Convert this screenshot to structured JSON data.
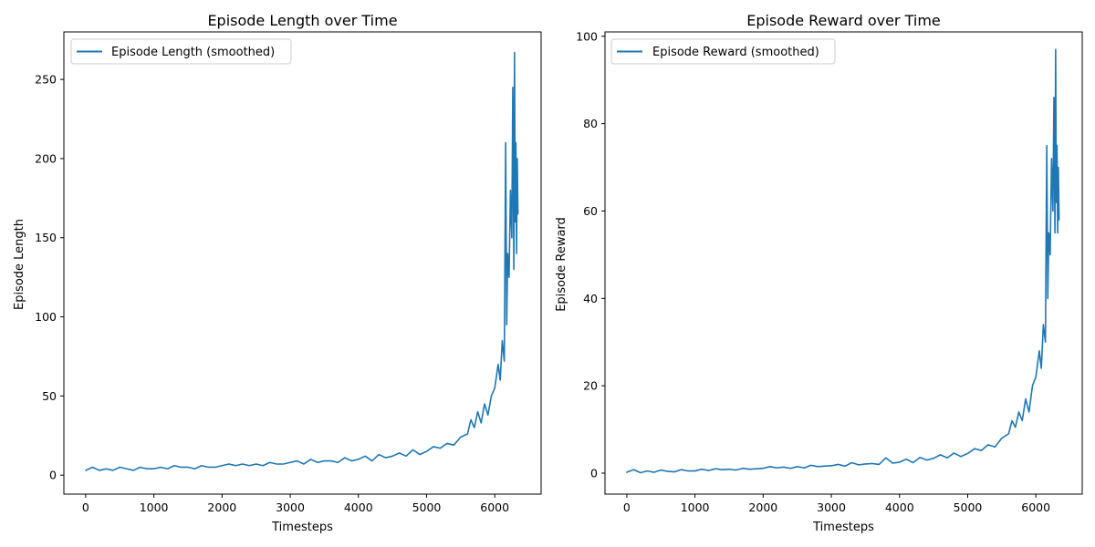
{
  "chart_data": [
    {
      "type": "line",
      "title": "Episode Length over Time",
      "xlabel": "Timesteps",
      "ylabel": "Episode Length",
      "xlim": [
        -320,
        6680
      ],
      "ylim": [
        -12,
        280
      ],
      "xticks": [
        0,
        1000,
        2000,
        3000,
        4000,
        5000,
        6000
      ],
      "yticks": [
        0,
        50,
        100,
        150,
        200,
        250
      ],
      "grid": false,
      "legend_position": "upper-left",
      "series": [
        {
          "name": "Episode Length (smoothed)",
          "color": "#1f77b4",
          "x": [
            0,
            100,
            200,
            300,
            400,
            500,
            600,
            700,
            800,
            900,
            1000,
            1100,
            1200,
            1300,
            1400,
            1500,
            1600,
            1700,
            1800,
            1900,
            2000,
            2100,
            2200,
            2300,
            2400,
            2500,
            2600,
            2700,
            2800,
            2900,
            3000,
            3100,
            3200,
            3300,
            3400,
            3500,
            3600,
            3700,
            3800,
            3900,
            4000,
            4100,
            4200,
            4300,
            4400,
            4500,
            4600,
            4700,
            4800,
            4900,
            5000,
            5100,
            5200,
            5300,
            5400,
            5500,
            5600,
            5650,
            5700,
            5750,
            5800,
            5850,
            5900,
            5950,
            6000,
            6050,
            6080,
            6110,
            6140,
            6160,
            6175,
            6190,
            6210,
            6230,
            6250,
            6265,
            6280,
            6290,
            6300,
            6310,
            6320,
            6330,
            6340
          ],
          "y": [
            3,
            5,
            3,
            4,
            3,
            5,
            4,
            3,
            5,
            4,
            4,
            5,
            4,
            6,
            5,
            5,
            4,
            6,
            5,
            5,
            6,
            7,
            6,
            7,
            6,
            7,
            6,
            8,
            7,
            7,
            8,
            9,
            7,
            10,
            8,
            9,
            9,
            8,
            11,
            9,
            10,
            12,
            9,
            13,
            11,
            12,
            14,
            12,
            16,
            13,
            15,
            18,
            17,
            20,
            19,
            24,
            26,
            35,
            30,
            40,
            33,
            45,
            38,
            50,
            55,
            70,
            60,
            85,
            72,
            210,
            95,
            140,
            125,
            180,
            150,
            245,
            130,
            267,
            160,
            210,
            140,
            200,
            165
          ]
        }
      ]
    },
    {
      "type": "line",
      "title": "Episode Reward over Time",
      "xlabel": "Timesteps",
      "ylabel": "Episode Reward",
      "xlim": [
        -320,
        6680
      ],
      "ylim": [
        -4.8,
        101
      ],
      "xticks": [
        0,
        1000,
        2000,
        3000,
        4000,
        5000,
        6000
      ],
      "yticks": [
        0,
        20,
        40,
        60,
        80,
        100
      ],
      "grid": false,
      "legend_position": "upper-left",
      "series": [
        {
          "name": "Episode Reward (smoothed)",
          "color": "#1f77b4",
          "x": [
            0,
            100,
            200,
            300,
            400,
            500,
            600,
            700,
            800,
            900,
            1000,
            1100,
            1200,
            1300,
            1400,
            1500,
            1600,
            1700,
            1800,
            1900,
            2000,
            2100,
            2200,
            2300,
            2400,
            2500,
            2600,
            2700,
            2800,
            2900,
            3000,
            3100,
            3200,
            3300,
            3400,
            3500,
            3600,
            3700,
            3800,
            3900,
            4000,
            4100,
            4200,
            4300,
            4400,
            4500,
            4600,
            4700,
            4800,
            4900,
            5000,
            5100,
            5200,
            5300,
            5400,
            5500,
            5600,
            5650,
            5700,
            5750,
            5800,
            5850,
            5900,
            5950,
            6000,
            6050,
            6080,
            6110,
            6140,
            6160,
            6175,
            6190,
            6210,
            6230,
            6250,
            6265,
            6280,
            6290,
            6300,
            6310,
            6320,
            6330,
            6340
          ],
          "y": [
            0.2,
            0.8,
            0.1,
            0.5,
            0.2,
            0.7,
            0.4,
            0.3,
            0.8,
            0.5,
            0.5,
            0.9,
            0.6,
            1.0,
            0.8,
            0.9,
            0.7,
            1.1,
            0.9,
            1.0,
            1.1,
            1.5,
            1.2,
            1.4,
            1.1,
            1.5,
            1.2,
            1.8,
            1.5,
            1.6,
            1.7,
            2.0,
            1.6,
            2.4,
            1.9,
            2.1,
            2.2,
            2.0,
            3.5,
            2.3,
            2.5,
            3.2,
            2.4,
            3.6,
            3.0,
            3.4,
            4.2,
            3.5,
            4.6,
            3.8,
            4.5,
            5.6,
            5.2,
            6.5,
            6.0,
            8.0,
            9.0,
            12.0,
            10.5,
            14.0,
            12.0,
            17.0,
            14.0,
            20.0,
            22.0,
            28.0,
            24.0,
            34.0,
            30.0,
            75.0,
            40.0,
            55.0,
            50.0,
            72.0,
            60.0,
            86.0,
            55.0,
            97.0,
            62.0,
            75.0,
            55.0,
            70.0,
            58.0
          ]
        }
      ]
    }
  ]
}
